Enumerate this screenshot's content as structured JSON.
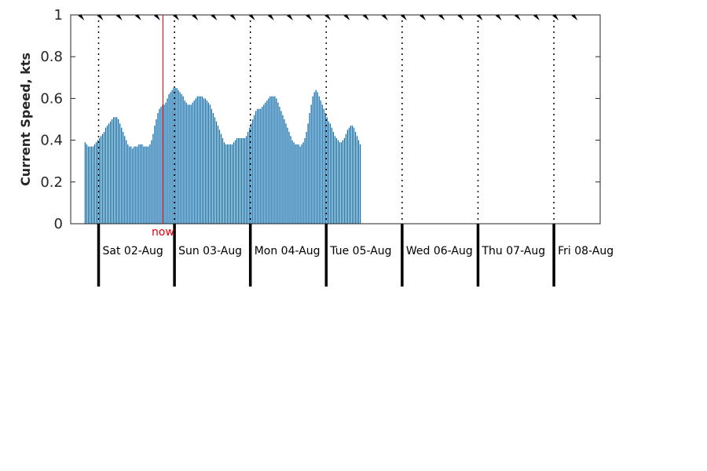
{
  "chart_data": {
    "type": "bar",
    "ylabel": "Current Speed, kts",
    "ylim": [
      0,
      1
    ],
    "yticks": [
      {
        "value": 0,
        "label": "0"
      },
      {
        "value": 0.2,
        "label": "0.2"
      },
      {
        "value": 0.4,
        "label": "0.4"
      },
      {
        "value": 0.6,
        "label": "0.6"
      },
      {
        "value": 0.8,
        "label": "0.8"
      },
      {
        "value": 1,
        "label": "1"
      }
    ],
    "x_hours_start": "2025-08-01T20:15",
    "x_step_hours": 0.5,
    "values": [
      0.39,
      0.38,
      0.37,
      0.37,
      0.37,
      0.37,
      0.38,
      0.39,
      0.4,
      0.41,
      0.42,
      0.43,
      0.44,
      0.46,
      0.47,
      0.48,
      0.49,
      0.5,
      0.51,
      0.51,
      0.51,
      0.5,
      0.48,
      0.46,
      0.44,
      0.42,
      0.4,
      0.38,
      0.37,
      0.37,
      0.36,
      0.37,
      0.37,
      0.37,
      0.38,
      0.38,
      0.38,
      0.37,
      0.37,
      0.37,
      0.37,
      0.38,
      0.4,
      0.43,
      0.47,
      0.5,
      0.53,
      0.55,
      0.56,
      0.57,
      0.57,
      0.58,
      0.6,
      0.62,
      0.63,
      0.64,
      0.65,
      0.65,
      0.65,
      0.64,
      0.63,
      0.62,
      0.61,
      0.59,
      0.58,
      0.57,
      0.57,
      0.57,
      0.58,
      0.59,
      0.6,
      0.61,
      0.61,
      0.61,
      0.61,
      0.6,
      0.6,
      0.59,
      0.58,
      0.57,
      0.55,
      0.53,
      0.51,
      0.49,
      0.47,
      0.45,
      0.43,
      0.41,
      0.39,
      0.38,
      0.38,
      0.38,
      0.38,
      0.38,
      0.39,
      0.4,
      0.41,
      0.41,
      0.41,
      0.41,
      0.41,
      0.41,
      0.42,
      0.44,
      0.46,
      0.48,
      0.5,
      0.52,
      0.54,
      0.55,
      0.55,
      0.55,
      0.56,
      0.57,
      0.58,
      0.59,
      0.6,
      0.61,
      0.61,
      0.61,
      0.61,
      0.6,
      0.58,
      0.56,
      0.54,
      0.52,
      0.5,
      0.48,
      0.46,
      0.44,
      0.42,
      0.4,
      0.39,
      0.38,
      0.38,
      0.38,
      0.37,
      0.38,
      0.39,
      0.41,
      0.44,
      0.48,
      0.53,
      0.57,
      0.61,
      0.63,
      0.64,
      0.63,
      0.61,
      0.59,
      0.57,
      0.55,
      0.53,
      0.51,
      0.49,
      0.48,
      0.46,
      0.44,
      0.42,
      0.41,
      0.4,
      0.39,
      0.39,
      0.4,
      0.41,
      0.43,
      0.45,
      0.46,
      0.47,
      0.47,
      0.46,
      0.44,
      0.42,
      0.4,
      0.38
    ],
    "days": [
      {
        "label": "Sat 02-Aug",
        "start_hour": 0
      },
      {
        "label": "Sun 03-Aug",
        "start_hour": 24
      },
      {
        "label": "Mon 04-Aug",
        "start_hour": 48
      },
      {
        "label": "Tue 05-Aug",
        "start_hour": 72
      },
      {
        "label": "Wed 06-Aug",
        "start_hour": 96
      },
      {
        "label": "Thu 07-Aug",
        "start_hour": 120
      },
      {
        "label": "Fri 08-Aug",
        "start_hour": 144
      }
    ],
    "now_label": "now",
    "now_hour": 20,
    "colors": {
      "bar": "#0a6aaa",
      "now": "#e8000b",
      "axis": "#262626"
    }
  }
}
